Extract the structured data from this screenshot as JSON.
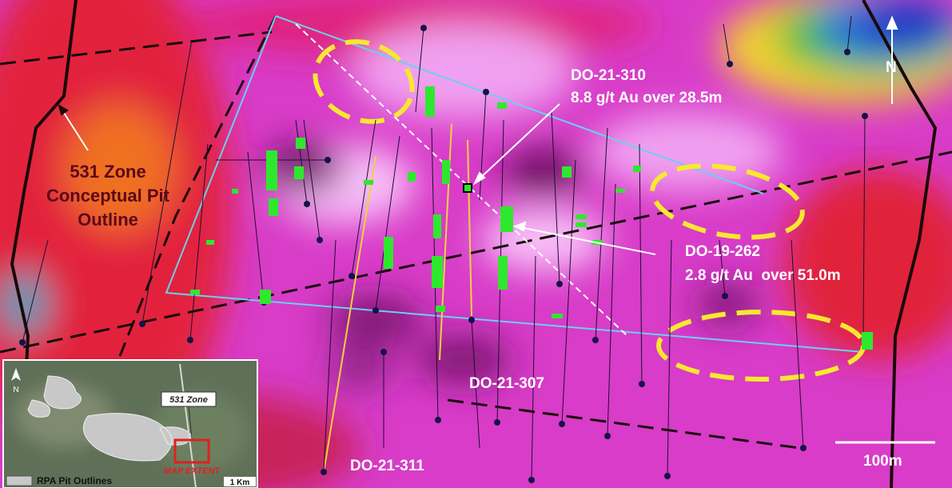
{
  "labels": {
    "zone": [
      "531 Zone",
      "Conceptual Pit",
      "Outline"
    ],
    "hole_310": {
      "id": "DO-21-310",
      "grade": "8.8 g/t Au over 28.5m"
    },
    "hole_262": {
      "id": "DO-19-262",
      "grade": "2.8 g/t Au  over 51.0m"
    },
    "hole_307": "DO-21-307",
    "hole_311": "DO-21-311",
    "scale": "100m",
    "north": "N"
  },
  "inset": {
    "north": "N",
    "zone": "531 Zone",
    "extent": "MAP EXTENT",
    "legend": "RPA Pit Outlines",
    "scale": "1 Km"
  }
}
